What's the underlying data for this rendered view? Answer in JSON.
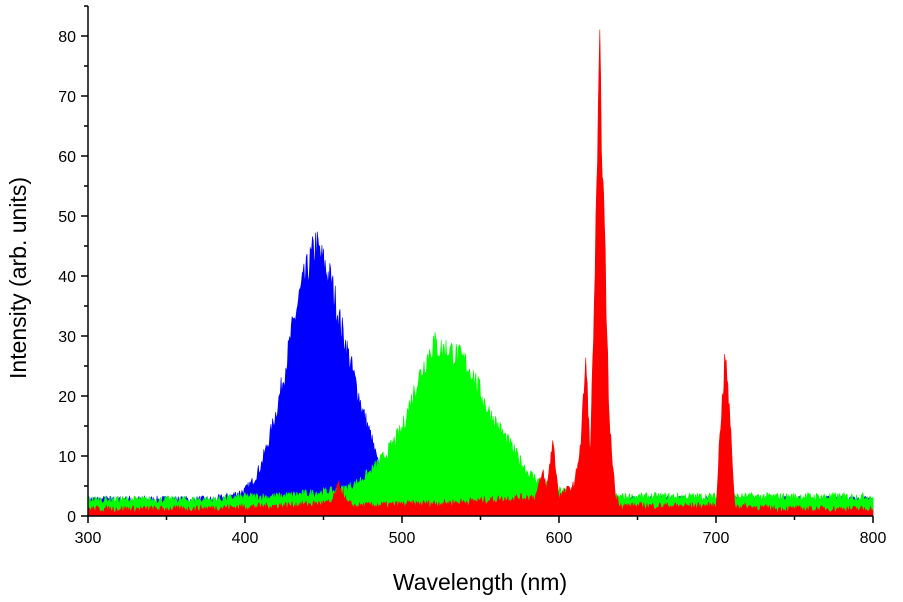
{
  "chart_data": {
    "type": "area",
    "title": "",
    "xlabel": "Wavelength (nm)",
    "ylabel": "Intensity (arb. units)",
    "xlim": [
      300,
      800
    ],
    "ylim": [
      0,
      85
    ],
    "xticks": [
      300,
      400,
      500,
      600,
      700,
      800
    ],
    "yticks": [
      0,
      10,
      20,
      30,
      40,
      50,
      60,
      70,
      80
    ],
    "grid": false,
    "legend": "none",
    "series": [
      {
        "color": "#0000ff",
        "x": [
          300,
          320,
          340,
          360,
          380,
          390,
          400,
          405,
          410,
          415,
          420,
          425,
          430,
          435,
          440,
          445,
          450,
          455,
          460,
          465,
          470,
          475,
          480,
          485,
          490,
          500,
          520,
          540,
          560,
          580,
          600,
          620,
          640,
          660,
          680,
          700,
          720,
          740,
          760,
          780,
          800
        ],
        "y": [
          2.5,
          2.5,
          2.5,
          2.5,
          2.5,
          3,
          4,
          5.5,
          8,
          12,
          17,
          23,
          30,
          36,
          40,
          44,
          41,
          38,
          32,
          27,
          22,
          17,
          13,
          8,
          5,
          3,
          2.5,
          2.5,
          2.5,
          2.5,
          2.5,
          2.5,
          2.5,
          2.5,
          2.5,
          2.5,
          2.5,
          2.5,
          2.5,
          2.5,
          2.5
        ]
      },
      {
        "color": "#00ff00",
        "x": [
          300,
          320,
          340,
          360,
          380,
          400,
          420,
          440,
          460,
          470,
          480,
          490,
          500,
          505,
          510,
          515,
          520,
          525,
          530,
          535,
          540,
          545,
          550,
          555,
          560,
          565,
          570,
          575,
          580,
          590,
          600,
          610,
          620,
          640,
          660,
          680,
          700,
          720,
          740,
          760,
          780,
          800
        ],
        "y": [
          2.5,
          2.5,
          2.5,
          2.5,
          2.5,
          3,
          3,
          3.5,
          4,
          5,
          7,
          10,
          14,
          18,
          22,
          25,
          28,
          27,
          27,
          26,
          25,
          23,
          20,
          17,
          15,
          13,
          11,
          9,
          7,
          5,
          4,
          3.5,
          3,
          3,
          3,
          3,
          3,
          3,
          3,
          3,
          3,
          3
        ]
      },
      {
        "color": "#ff0000",
        "x": [
          300,
          360,
          420,
          455,
          460,
          465,
          470,
          530,
          585,
          590,
          592,
          596,
          600,
          610,
          614,
          617,
          620,
          623,
          626,
          629,
          632,
          636,
          640,
          700,
          703,
          706,
          709,
          712,
          740,
          800
        ],
        "y": [
          1,
          1,
          1.5,
          2,
          5,
          2,
          1.5,
          2,
          3,
          7,
          4,
          12,
          3,
          5,
          12,
          25,
          10,
          40,
          74,
          45,
          15,
          3,
          1.5,
          1.5,
          15,
          26,
          15,
          1.5,
          1,
          1
        ]
      }
    ]
  }
}
